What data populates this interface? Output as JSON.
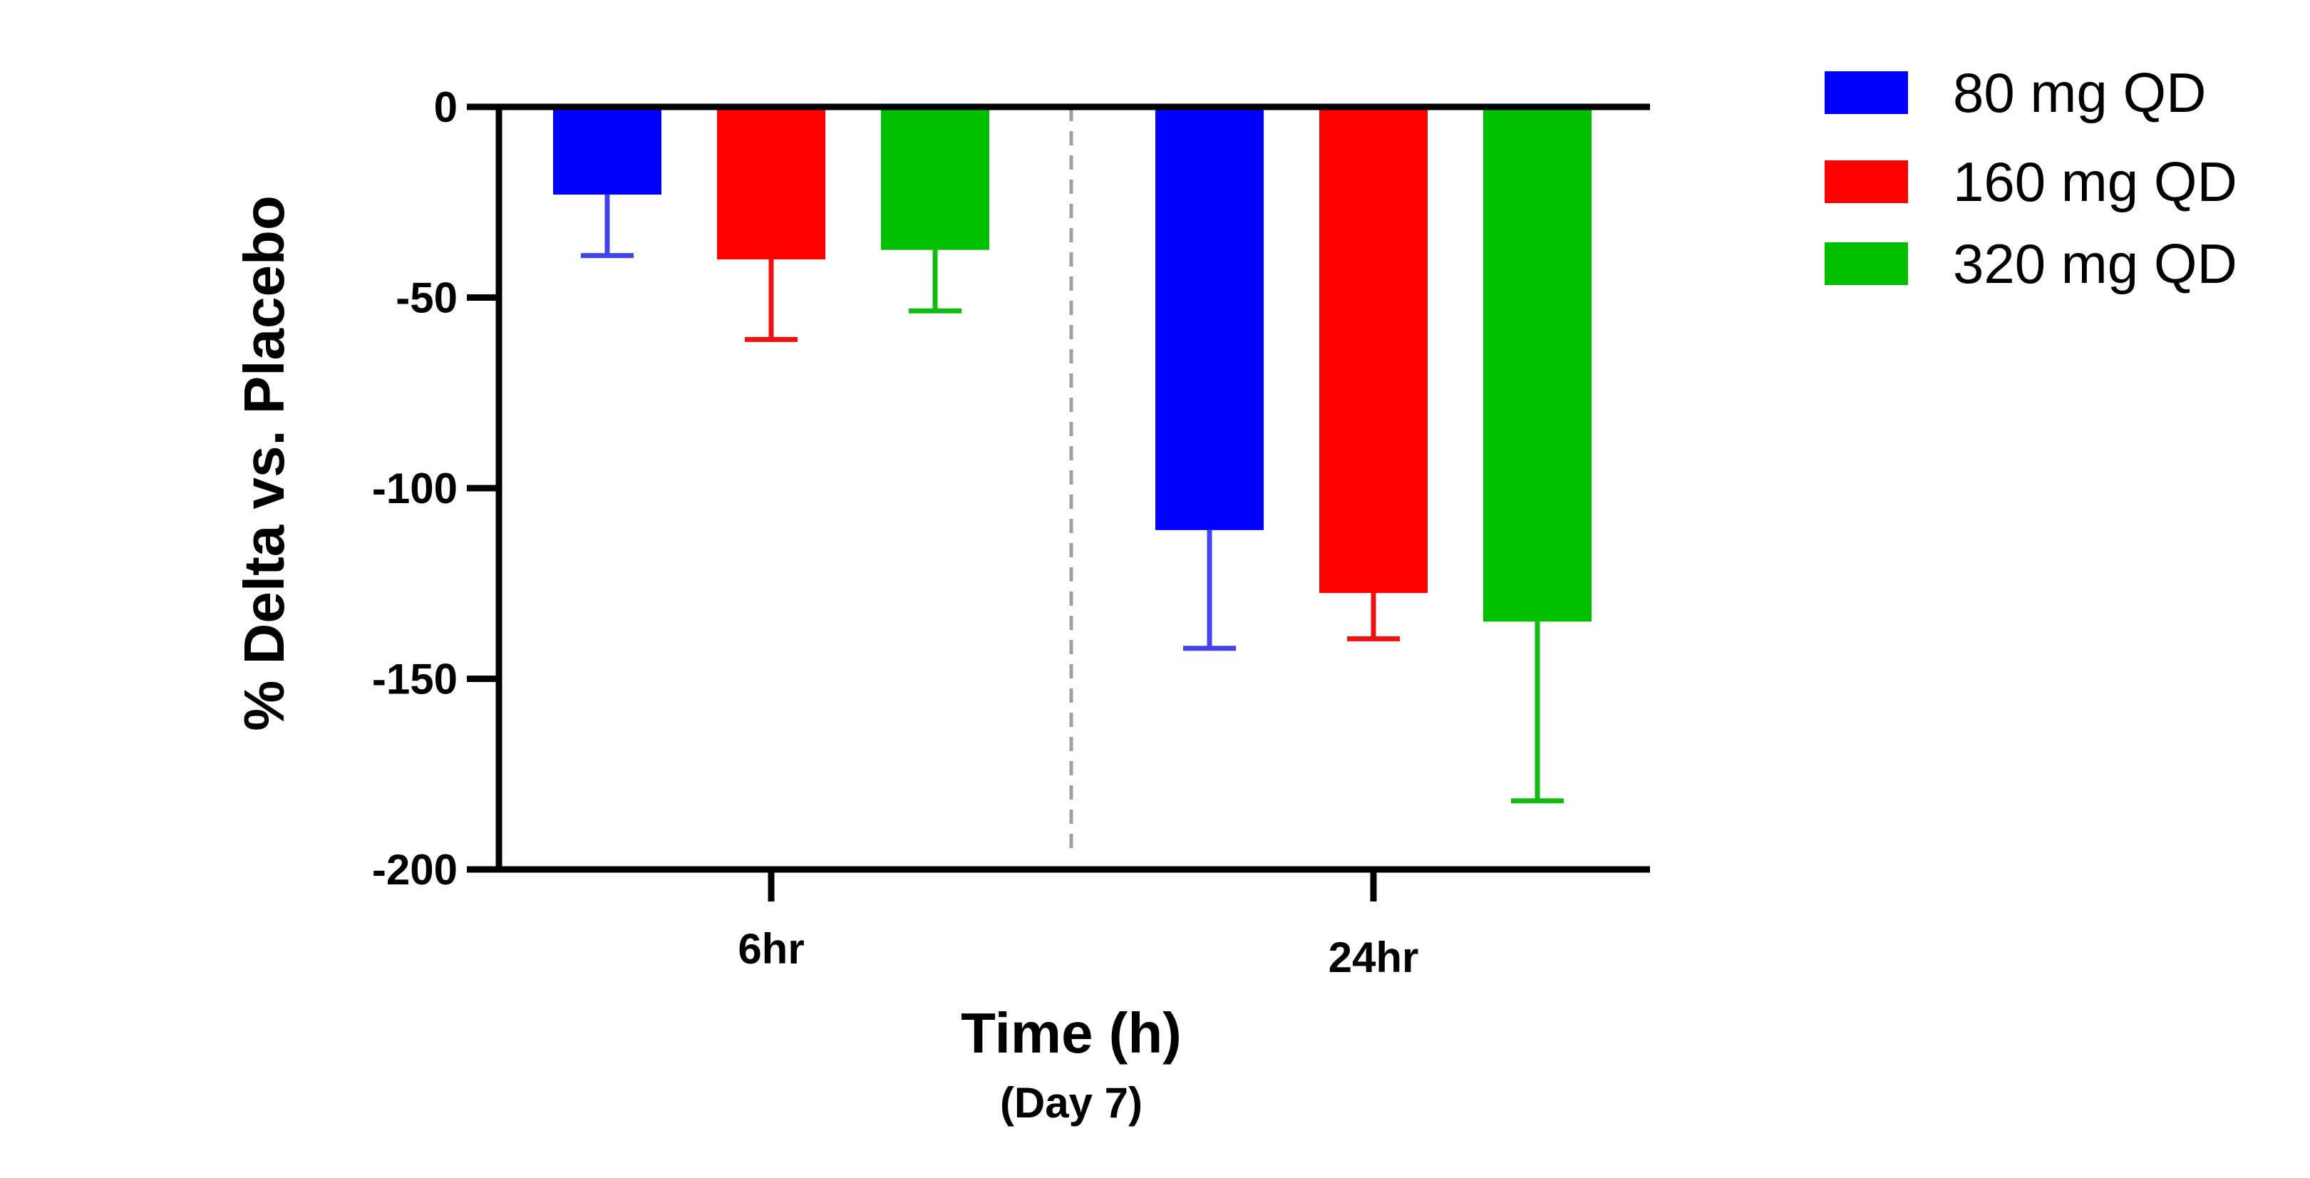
{
  "chart_data": {
    "type": "bar",
    "categories": [
      "6hr",
      "24hr"
    ],
    "series": [
      {
        "name": "80 mg QD",
        "color": "#0000FF",
        "error_color": "#4444EE",
        "values": [
          -23,
          -111
        ],
        "errors": [
          16,
          31
        ]
      },
      {
        "name": "160 mg QD",
        "color": "#FF0000",
        "error_color": "#EE1111",
        "values": [
          -40,
          -127.5
        ],
        "errors": [
          21,
          12
        ]
      },
      {
        "name": "320 mg QD",
        "color": "#00C000",
        "error_color": "#11BB11",
        "values": [
          -37.5,
          -135
        ],
        "errors": [
          16,
          47
        ]
      }
    ],
    "title": "",
    "xlabel": "Time (h)",
    "xlabel_sub": "(Day 7)",
    "ylabel": "% Delta vs. Placebo",
    "ylim": [
      -200,
      0
    ],
    "yticks": [
      0,
      -50,
      -100,
      -150,
      -200
    ],
    "ytick_labels": [
      "0",
      "-50",
      "-100",
      "-150",
      "-200"
    ],
    "divider": "dashed vertical line between groups",
    "legend_position": "top-right",
    "grid": false
  }
}
